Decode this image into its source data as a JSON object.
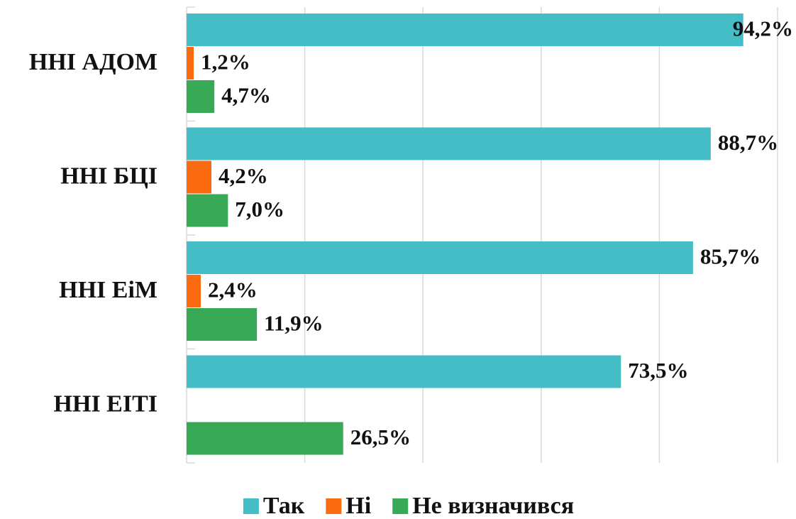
{
  "chart_data": {
    "type": "bar",
    "orientation": "horizontal",
    "categories": [
      "ННІ АДОМ",
      "ННІ БЦІ",
      "ННІ ЕіМ",
      "ННІ ЕІТІ"
    ],
    "series": [
      {
        "name": "Так",
        "color": "#45bdc6",
        "values": [
          94.2,
          88.7,
          85.7,
          73.5
        ],
        "value_labels": [
          "94,2%",
          "88,7%",
          "85,7%",
          "73,5%"
        ]
      },
      {
        "name": "Ні",
        "color": "#fa6b12",
        "values": [
          1.2,
          4.2,
          2.4,
          null
        ],
        "value_labels": [
          "1,2%",
          "4,2%",
          "2,4%",
          null
        ]
      },
      {
        "name": "Не визначився",
        "color": "#37a957",
        "values": [
          4.7,
          7.0,
          11.9,
          26.5
        ],
        "value_labels": [
          "4,7%",
          "7,0%",
          "11,9%",
          "26,5%"
        ]
      }
    ],
    "xlim": [
      0,
      100
    ],
    "xticks": [
      0,
      20,
      40,
      60,
      80,
      100
    ],
    "grid": true,
    "legend": "bottom"
  }
}
